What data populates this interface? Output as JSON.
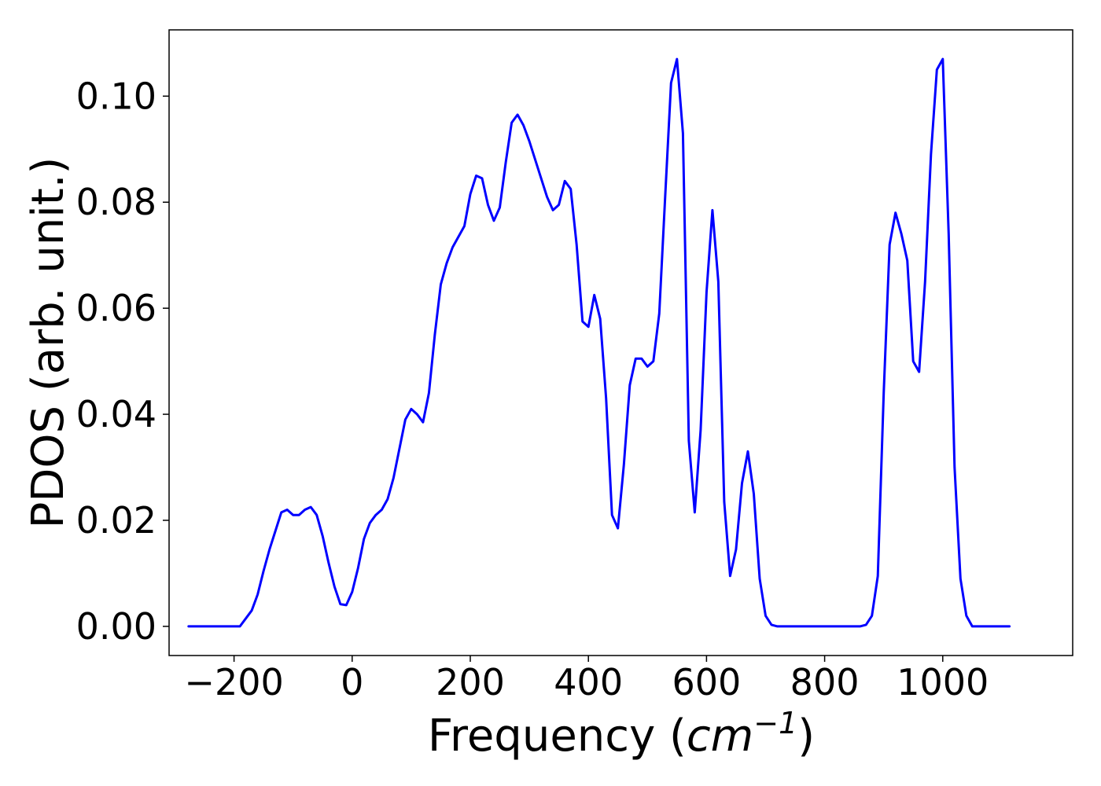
{
  "chart_data": {
    "type": "line",
    "title": "",
    "xlabel": "Frequency",
    "xlabel_unit_base": "cm",
    "xlabel_unit_exp": "−1",
    "ylabel": "PDOS (arb. unit.)",
    "xlim": [
      -310,
      1220
    ],
    "ylim": [
      -0.0055,
      0.1125
    ],
    "xticks": [
      -200,
      0,
      200,
      400,
      600,
      800,
      1000
    ],
    "xtick_labels": [
      "−200",
      "0",
      "200",
      "400",
      "600",
      "800",
      "1000"
    ],
    "yticks": [
      0.0,
      0.02,
      0.04,
      0.06,
      0.08,
      0.1
    ],
    "ytick_labels": [
      "0.00",
      "0.02",
      "0.04",
      "0.06",
      "0.08",
      "0.10"
    ],
    "grid": false,
    "legend": "none",
    "series": [
      {
        "color": "#0000ff",
        "x": [
          -277,
          -190,
          -180,
          -170,
          -160,
          -150,
          -140,
          -130,
          -120,
          -110,
          -100,
          -90,
          -80,
          -70,
          -60,
          -50,
          -40,
          -30,
          -20,
          -10,
          0,
          10,
          20,
          30,
          40,
          50,
          60,
          70,
          80,
          90,
          100,
          110,
          120,
          130,
          140,
          150,
          160,
          170,
          180,
          190,
          200,
          210,
          220,
          230,
          240,
          250,
          260,
          270,
          280,
          290,
          300,
          310,
          320,
          330,
          340,
          350,
          360,
          370,
          380,
          390,
          400,
          410,
          420,
          430,
          440,
          450,
          460,
          470,
          480,
          490,
          500,
          510,
          520,
          530,
          540,
          550,
          560,
          570,
          580,
          590,
          600,
          610,
          620,
          630,
          640,
          650,
          660,
          670,
          680,
          690,
          700,
          710,
          720,
          860,
          870,
          880,
          890,
          900,
          910,
          920,
          930,
          940,
          950,
          960,
          970,
          980,
          990,
          1000,
          1010,
          1020,
          1030,
          1040,
          1050,
          1113
        ],
        "y": [
          0.0,
          0.0,
          0.0015,
          0.003,
          0.006,
          0.0105,
          0.0145,
          0.018,
          0.0215,
          0.022,
          0.021,
          0.021,
          0.022,
          0.0225,
          0.021,
          0.017,
          0.012,
          0.0075,
          0.0042,
          0.004,
          0.0065,
          0.011,
          0.0165,
          0.0195,
          0.021,
          0.022,
          0.024,
          0.028,
          0.0335,
          0.039,
          0.041,
          0.04,
          0.0385,
          0.044,
          0.055,
          0.0645,
          0.0685,
          0.0715,
          0.0735,
          0.0755,
          0.0815,
          0.085,
          0.0845,
          0.0795,
          0.0765,
          0.079,
          0.0875,
          0.095,
          0.0965,
          0.0945,
          0.0915,
          0.088,
          0.0845,
          0.081,
          0.0785,
          0.0795,
          0.084,
          0.0825,
          0.072,
          0.0575,
          0.0565,
          0.0625,
          0.058,
          0.043,
          0.021,
          0.0185,
          0.0305,
          0.0455,
          0.0505,
          0.0505,
          0.049,
          0.05,
          0.059,
          0.081,
          0.1025,
          0.107,
          0.093,
          0.035,
          0.0215,
          0.037,
          0.063,
          0.0785,
          0.065,
          0.0235,
          0.0095,
          0.0145,
          0.027,
          0.033,
          0.025,
          0.009,
          0.002,
          0.0003,
          0.0,
          0.0,
          0.0003,
          0.002,
          0.0095,
          0.044,
          0.072,
          0.078,
          0.074,
          0.069,
          0.05,
          0.048,
          0.065,
          0.089,
          0.105,
          0.107,
          0.074,
          0.03,
          0.009,
          0.002,
          0.0,
          0.0
        ]
      }
    ]
  }
}
